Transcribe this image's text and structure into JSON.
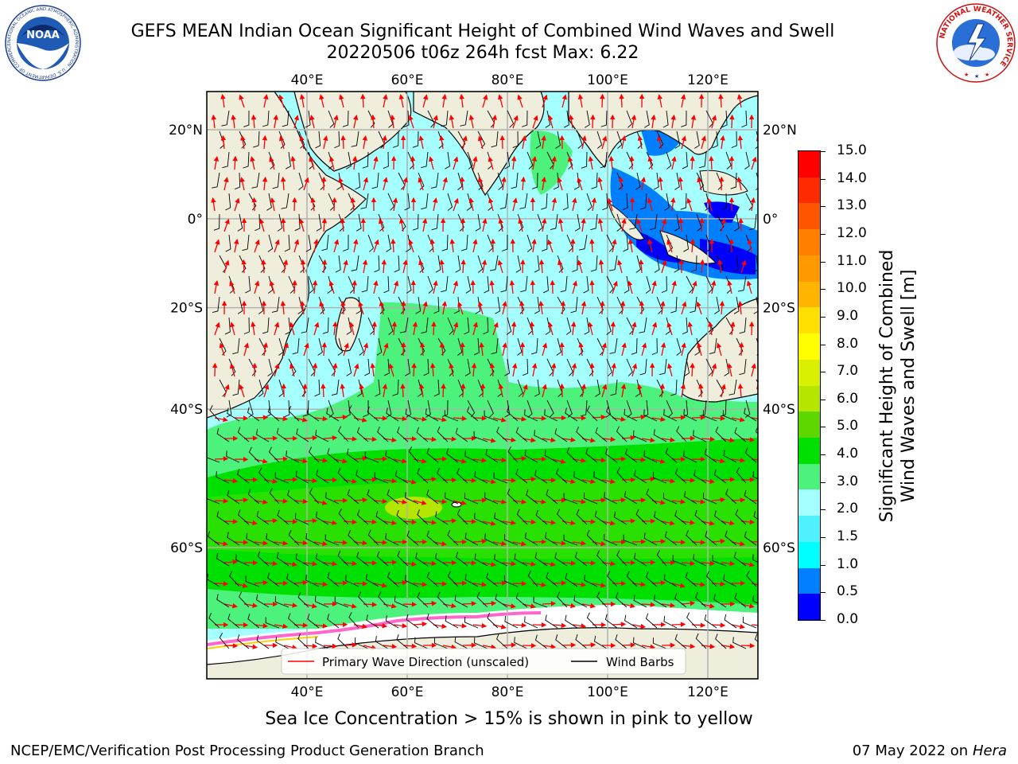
{
  "title": {
    "line1": "GEFS MEAN Indian Ocean Significant Height of Combined Wind Waves and Swell",
    "line2": "20220506 t06z 264h fcst   Max: 6.22"
  },
  "logos": {
    "noaa": {
      "text": "NOAA",
      "ring_text": "NATIONAL OCEANIC AND ATMOSPHERIC ADMINISTRATION · U.S. DEPARTMENT OF COMMERCE ·"
    },
    "nws": {
      "ring_text": "NATIONAL WEATHER SERVICE"
    }
  },
  "map": {
    "lon_range": [
      20,
      130
    ],
    "lat_range": [
      -72,
      28
    ],
    "lon_ticks": [
      "40°E",
      "60°E",
      "80°E",
      "100°E",
      "120°E"
    ],
    "lat_ticks_left": [
      "20°N",
      "0°",
      "20°S",
      "40°S",
      "60°S"
    ],
    "lat_ticks_right": [
      "20°N",
      "0°",
      "20°S",
      "40°S",
      "60°S"
    ],
    "grid": true,
    "land_color": "#efeedd",
    "ice_color": "#ffffff",
    "legend": {
      "placement": "bottom-center",
      "items": [
        {
          "label": "Primary Wave Direction (unscaled)",
          "color": "#ff0000"
        },
        {
          "label": "Wind Barbs",
          "color": "#000000"
        }
      ]
    }
  },
  "colorbar": {
    "labels": [
      "15.0",
      "14.0",
      "13.0",
      "12.0",
      "11.0",
      "10.0",
      "9.0",
      "8.0",
      "7.0",
      "6.0",
      "5.0",
      "4.0",
      "3.0",
      "2.0",
      "1.5",
      "1.0",
      "0.5",
      "0.0"
    ],
    "colors_top_to_bottom": [
      "#ff0000",
      "#ff2a00",
      "#ff5500",
      "#ff7f00",
      "#ff9900",
      "#ffb400",
      "#ffe000",
      "#ffff00",
      "#d9f000",
      "#b4e600",
      "#5ed600",
      "#00e000",
      "#4df27d",
      "#a6ffff",
      "#4ff0ff",
      "#00ffff",
      "#0080ff",
      "#0000ff"
    ],
    "title_line1": "Significant Height of Combined",
    "title_line2": "Wind Waves and Swell [m]"
  },
  "footer": {
    "note": "Sea Ice Concentration > 15% is shown in pink to yellow",
    "branch": "NCEP/EMC/Verification Post Processing Product Generation Branch",
    "date": "07 May 2022 on",
    "host": "Hera"
  }
}
